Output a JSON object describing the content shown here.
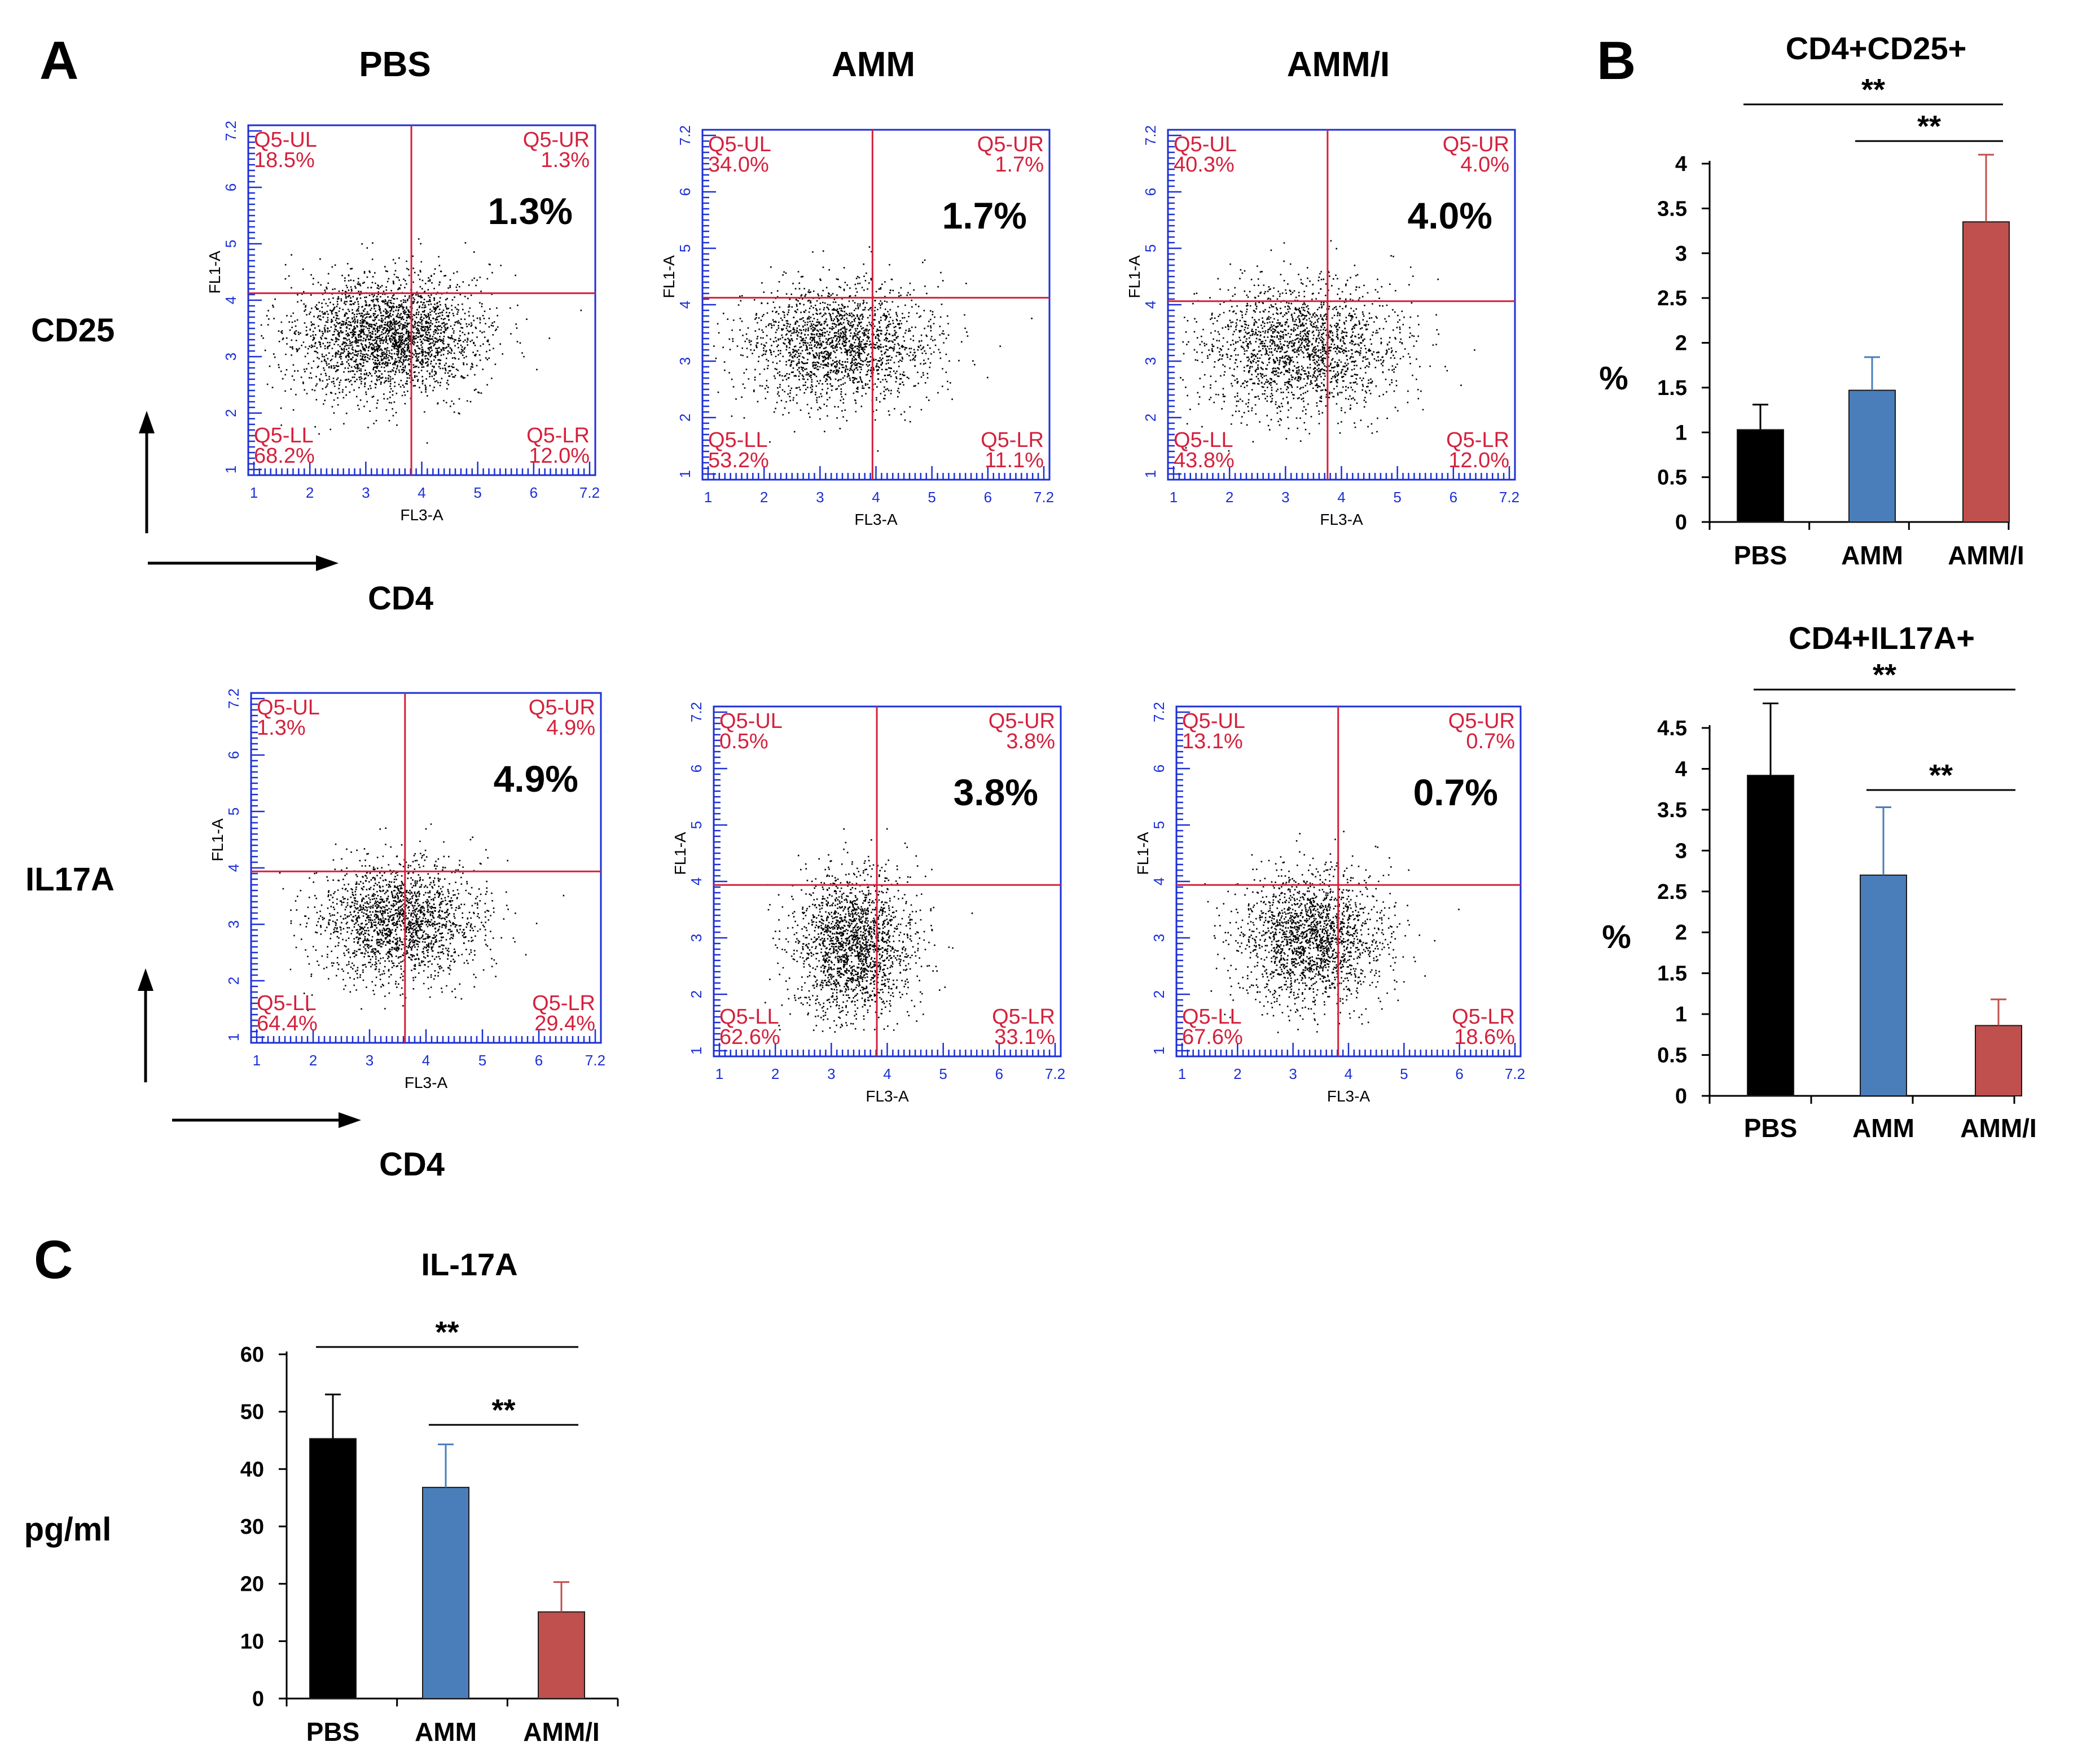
{
  "panels": {
    "A": "A",
    "B": "B",
    "C": "C"
  },
  "group_titles": [
    "PBS",
    "AMM",
    "AMM/I"
  ],
  "markers": {
    "row1_y": "CD25",
    "row2_y": "IL17A",
    "x": "CD4"
  },
  "flow": {
    "x_axis_label": "FL3-A",
    "y_axis_label": "FL1-A",
    "tick_labels": [
      "1",
      "2",
      "3",
      "4",
      "5",
      "6",
      "7.2"
    ],
    "quadrant_names": {
      "ul": "Q5-UL",
      "ur": "Q5-UR",
      "ll": "Q5-LL",
      "lr": "Q5-LR"
    },
    "plots": [
      {
        "row": 0,
        "col": 0,
        "ul": "18.5%",
        "ur": "1.3%",
        "ll": "68.2%",
        "lr": "12.0%",
        "big": "1.3%"
      },
      {
        "row": 0,
        "col": 1,
        "ul": "34.0%",
        "ur": "1.7%",
        "ll": "53.2%",
        "lr": "11.1%",
        "big": "1.7%"
      },
      {
        "row": 0,
        "col": 2,
        "ul": "40.3%",
        "ur": "4.0%",
        "ll": "43.8%",
        "lr": "12.0%",
        "big": "4.0%"
      },
      {
        "row": 1,
        "col": 0,
        "ul": "1.3%",
        "ur": "4.9%",
        "ll": "64.4%",
        "lr": "29.4%",
        "big": "4.9%"
      },
      {
        "row": 1,
        "col": 1,
        "ul": "0.5%",
        "ur": "3.8%",
        "ll": "62.6%",
        "lr": "33.1%",
        "big": "3.8%"
      },
      {
        "row": 1,
        "col": 2,
        "ul": "13.1%",
        "ur": "0.7%",
        "ll": "67.6%",
        "lr": "18.6%",
        "big": "0.7%"
      }
    ]
  },
  "colors": {
    "pbs": "#000000",
    "amm": "#4a7ebb",
    "ammi": "#c0504d",
    "gate": "#d4213d",
    "frame": "#1b2fd6"
  },
  "chart_data": [
    {
      "id": "b1",
      "type": "bar",
      "title": "CD4+CD25+",
      "ylabel": "%",
      "categories": [
        "PBS",
        "AMM",
        "AMM/I"
      ],
      "values": [
        1.03,
        1.47,
        3.35
      ],
      "errors": [
        0.28,
        0.37,
        0.75
      ],
      "ylim": [
        0,
        4
      ],
      "yticks": [
        0,
        0.5,
        1,
        1.5,
        2,
        2.5,
        3,
        3.5,
        4
      ],
      "ytick_labels": [
        "0",
        "0.5",
        "1",
        "1.5",
        "2",
        "2.5",
        "3",
        "3.5",
        "4"
      ],
      "significance": [
        {
          "from": 0,
          "to": 2,
          "label": "**"
        },
        {
          "from": 1,
          "to": 2,
          "label": "**"
        }
      ]
    },
    {
      "id": "b2",
      "type": "bar",
      "title": "CD4+IL17A+",
      "ylabel": "%",
      "categories": [
        "PBS",
        "AMM",
        "AMM/I"
      ],
      "values": [
        3.92,
        2.7,
        0.86
      ],
      "errors": [
        0.88,
        0.83,
        0.32
      ],
      "ylim": [
        0,
        4.5
      ],
      "yticks": [
        0,
        0.5,
        1,
        1.5,
        2,
        2.5,
        3,
        3.5,
        4,
        4.5
      ],
      "ytick_labels": [
        "0",
        "0.5",
        "1",
        "1.5",
        "2",
        "2.5",
        "3",
        "3.5",
        "4",
        "4.5"
      ],
      "significance": [
        {
          "from": 0,
          "to": 2,
          "label": "**"
        },
        {
          "from": 1,
          "to": 2,
          "label": "**"
        }
      ]
    },
    {
      "id": "c",
      "type": "bar",
      "title": "IL-17A",
      "ylabel": "pg/ml",
      "categories": [
        "PBS",
        "AMM",
        "AMM/I"
      ],
      "values": [
        45.3,
        36.8,
        15.1
      ],
      "errors": [
        7.7,
        7.5,
        5.2
      ],
      "ylim": [
        0,
        60
      ],
      "yticks": [
        0,
        10,
        20,
        30,
        40,
        50,
        60
      ],
      "ytick_labels": [
        "0",
        "10",
        "20",
        "30",
        "40",
        "50",
        "60"
      ],
      "significance": [
        {
          "from": 0,
          "to": 2,
          "label": "**"
        },
        {
          "from": 1,
          "to": 2,
          "label": "**"
        }
      ]
    }
  ]
}
